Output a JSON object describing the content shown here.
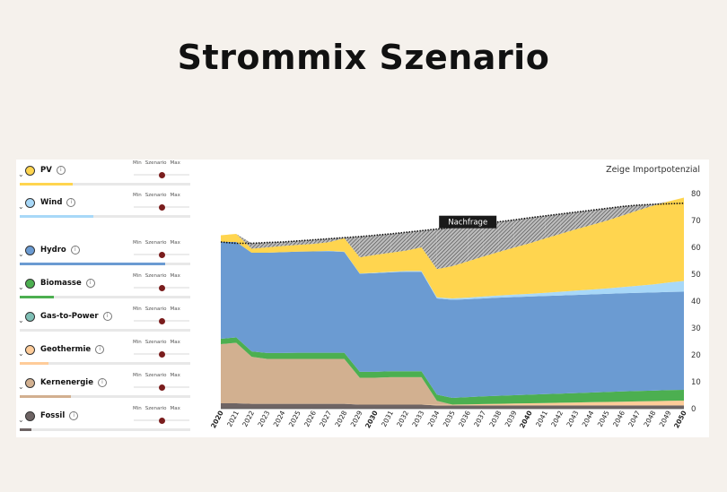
{
  "page": {
    "title": "Strommix Szenario"
  },
  "slider_labels": {
    "min": "Min",
    "scenario": "Szenario",
    "max": "Max"
  },
  "technologies": [
    {
      "name": "PV",
      "color": "#ffd54f",
      "share": 0.31,
      "slider": 0.5
    },
    {
      "name": "Wind",
      "color": "#a8d8f8",
      "share": 0.43,
      "slider": 0.5
    },
    {
      "name": "Hydro",
      "color": "#6b9bd2",
      "share": 0.85,
      "slider": 0.5
    },
    {
      "name": "Biomasse",
      "color": "#4caf50",
      "share": 0.2,
      "slider": 0.5
    },
    {
      "name": "Gas-to-Power",
      "color": "#7fbfb5",
      "share": 0.0,
      "slider": 0.5
    },
    {
      "name": "Geothermie",
      "color": "#ffcc99",
      "share": 0.17,
      "slider": 0.5
    },
    {
      "name": "Kernenergie",
      "color": "#d2b090",
      "share": 0.3,
      "slider": 0.5
    },
    {
      "name": "Fossil",
      "color": "#6e6464",
      "share": 0.07,
      "slider": 0.5
    }
  ],
  "chart_data": {
    "type": "area",
    "title": "",
    "toggle_label": "Zeige Importpotenzial",
    "xlabel": "",
    "ylabel": "",
    "ylim": [
      0,
      85
    ],
    "yticks": [
      0,
      10,
      20,
      30,
      40,
      50,
      60,
      70,
      80
    ],
    "bold_years": [
      2020,
      2030,
      2040,
      2050
    ],
    "x": [
      2020,
      2021,
      2022,
      2023,
      2024,
      2025,
      2026,
      2027,
      2028,
      2029,
      2030,
      2031,
      2032,
      2033,
      2034,
      2035,
      2036,
      2037,
      2038,
      2039,
      2040,
      2041,
      2042,
      2043,
      2044,
      2045,
      2046,
      2047,
      2048,
      2049,
      2050
    ],
    "series": [
      {
        "name": "Fossil",
        "color": "#6e6464",
        "values": [
          2,
          2,
          1.8,
          1.8,
          1.8,
          1.8,
          1.8,
          1.8,
          1.8,
          1.5,
          1.5,
          1.5,
          1.5,
          1.5,
          1.2,
          1.2,
          1.2,
          1.2,
          1.2,
          1.2,
          1.2,
          1.2,
          1.2,
          1.2,
          1.2,
          1.2,
          1.2,
          1.2,
          1.2,
          1.2,
          1.2
        ]
      },
      {
        "name": "Geothermie",
        "color": "#ffcc99",
        "values": [
          0,
          0,
          0,
          0,
          0,
          0,
          0,
          0,
          0,
          0,
          0,
          0,
          0,
          0,
          0.2,
          0.3,
          0.4,
          0.5,
          0.6,
          0.7,
          0.8,
          0.9,
          1,
          1.1,
          1.2,
          1.3,
          1.4,
          1.5,
          1.6,
          1.7,
          1.8
        ]
      },
      {
        "name": "Kernenergie",
        "color": "#d2b090",
        "values": [
          22,
          22.5,
          17.5,
          16.7,
          16.7,
          16.7,
          16.7,
          16.7,
          16.7,
          10,
          10,
          10.2,
          10.2,
          10.2,
          1.5,
          0,
          0,
          0,
          0,
          0,
          0,
          0,
          0,
          0,
          0,
          0,
          0,
          0,
          0,
          0,
          0
        ]
      },
      {
        "name": "Biomasse",
        "color": "#4caf50",
        "values": [
          2,
          2,
          2,
          2.2,
          2.2,
          2.3,
          2.3,
          2.3,
          2.3,
          2.2,
          2.2,
          2.2,
          2.2,
          2.2,
          2.3,
          2.5,
          2.7,
          2.9,
          3,
          3.1,
          3.2,
          3.3,
          3.4,
          3.5,
          3.6,
          3.7,
          3.8,
          3.9,
          3.9,
          4,
          4
        ]
      },
      {
        "name": "Hydro",
        "color": "#6b9bd2",
        "values": [
          36,
          35.5,
          36.7,
          37.3,
          37.5,
          37.6,
          37.7,
          37.8,
          37.5,
          36.5,
          36.7,
          36.8,
          37,
          37,
          35.8,
          36.5,
          36.4,
          36.4,
          36.5,
          36.5,
          36.5,
          36.5,
          36.5,
          36.5,
          36.5,
          36.5,
          36.5,
          36.5,
          36.5,
          36.5,
          36.5
        ]
      },
      {
        "name": "Wind",
        "color": "#a8d8f8",
        "values": [
          0,
          0,
          0,
          0,
          0,
          0,
          0,
          0.1,
          0.1,
          0.1,
          0.2,
          0.2,
          0.3,
          0.3,
          0.4,
          0.5,
          0.6,
          0.7,
          0.8,
          0.9,
          1,
          1.2,
          1.4,
          1.6,
          1.8,
          2,
          2.3,
          2.6,
          3,
          3.5,
          4
        ]
      },
      {
        "name": "PV",
        "color": "#ffd54f",
        "values": [
          2.5,
          3,
          1.5,
          2,
          2.3,
          2.5,
          2.8,
          3.2,
          5,
          6,
          6.6,
          7.1,
          7.6,
          8.8,
          10.5,
          12,
          13.5,
          14.9,
          16.2,
          17.5,
          18.8,
          20.2,
          21.5,
          22.8,
          24,
          25.2,
          26.6,
          28,
          29.3,
          30.2,
          31
        ]
      }
    ],
    "demand": {
      "name": "Nachfrage",
      "values": [
        62,
        61.5,
        61.5,
        61.8,
        62,
        62.4,
        62.8,
        63.2,
        63.6,
        64,
        64.5,
        65,
        65.6,
        66.2,
        66.8,
        67.4,
        68.1,
        68.8,
        69.5,
        70.2,
        71,
        71.7,
        72.4,
        73.1,
        73.8,
        74.5,
        75.2,
        75.7,
        76,
        76.2,
        76.4
      ]
    },
    "import_gap_label": "Nachfrage"
  }
}
